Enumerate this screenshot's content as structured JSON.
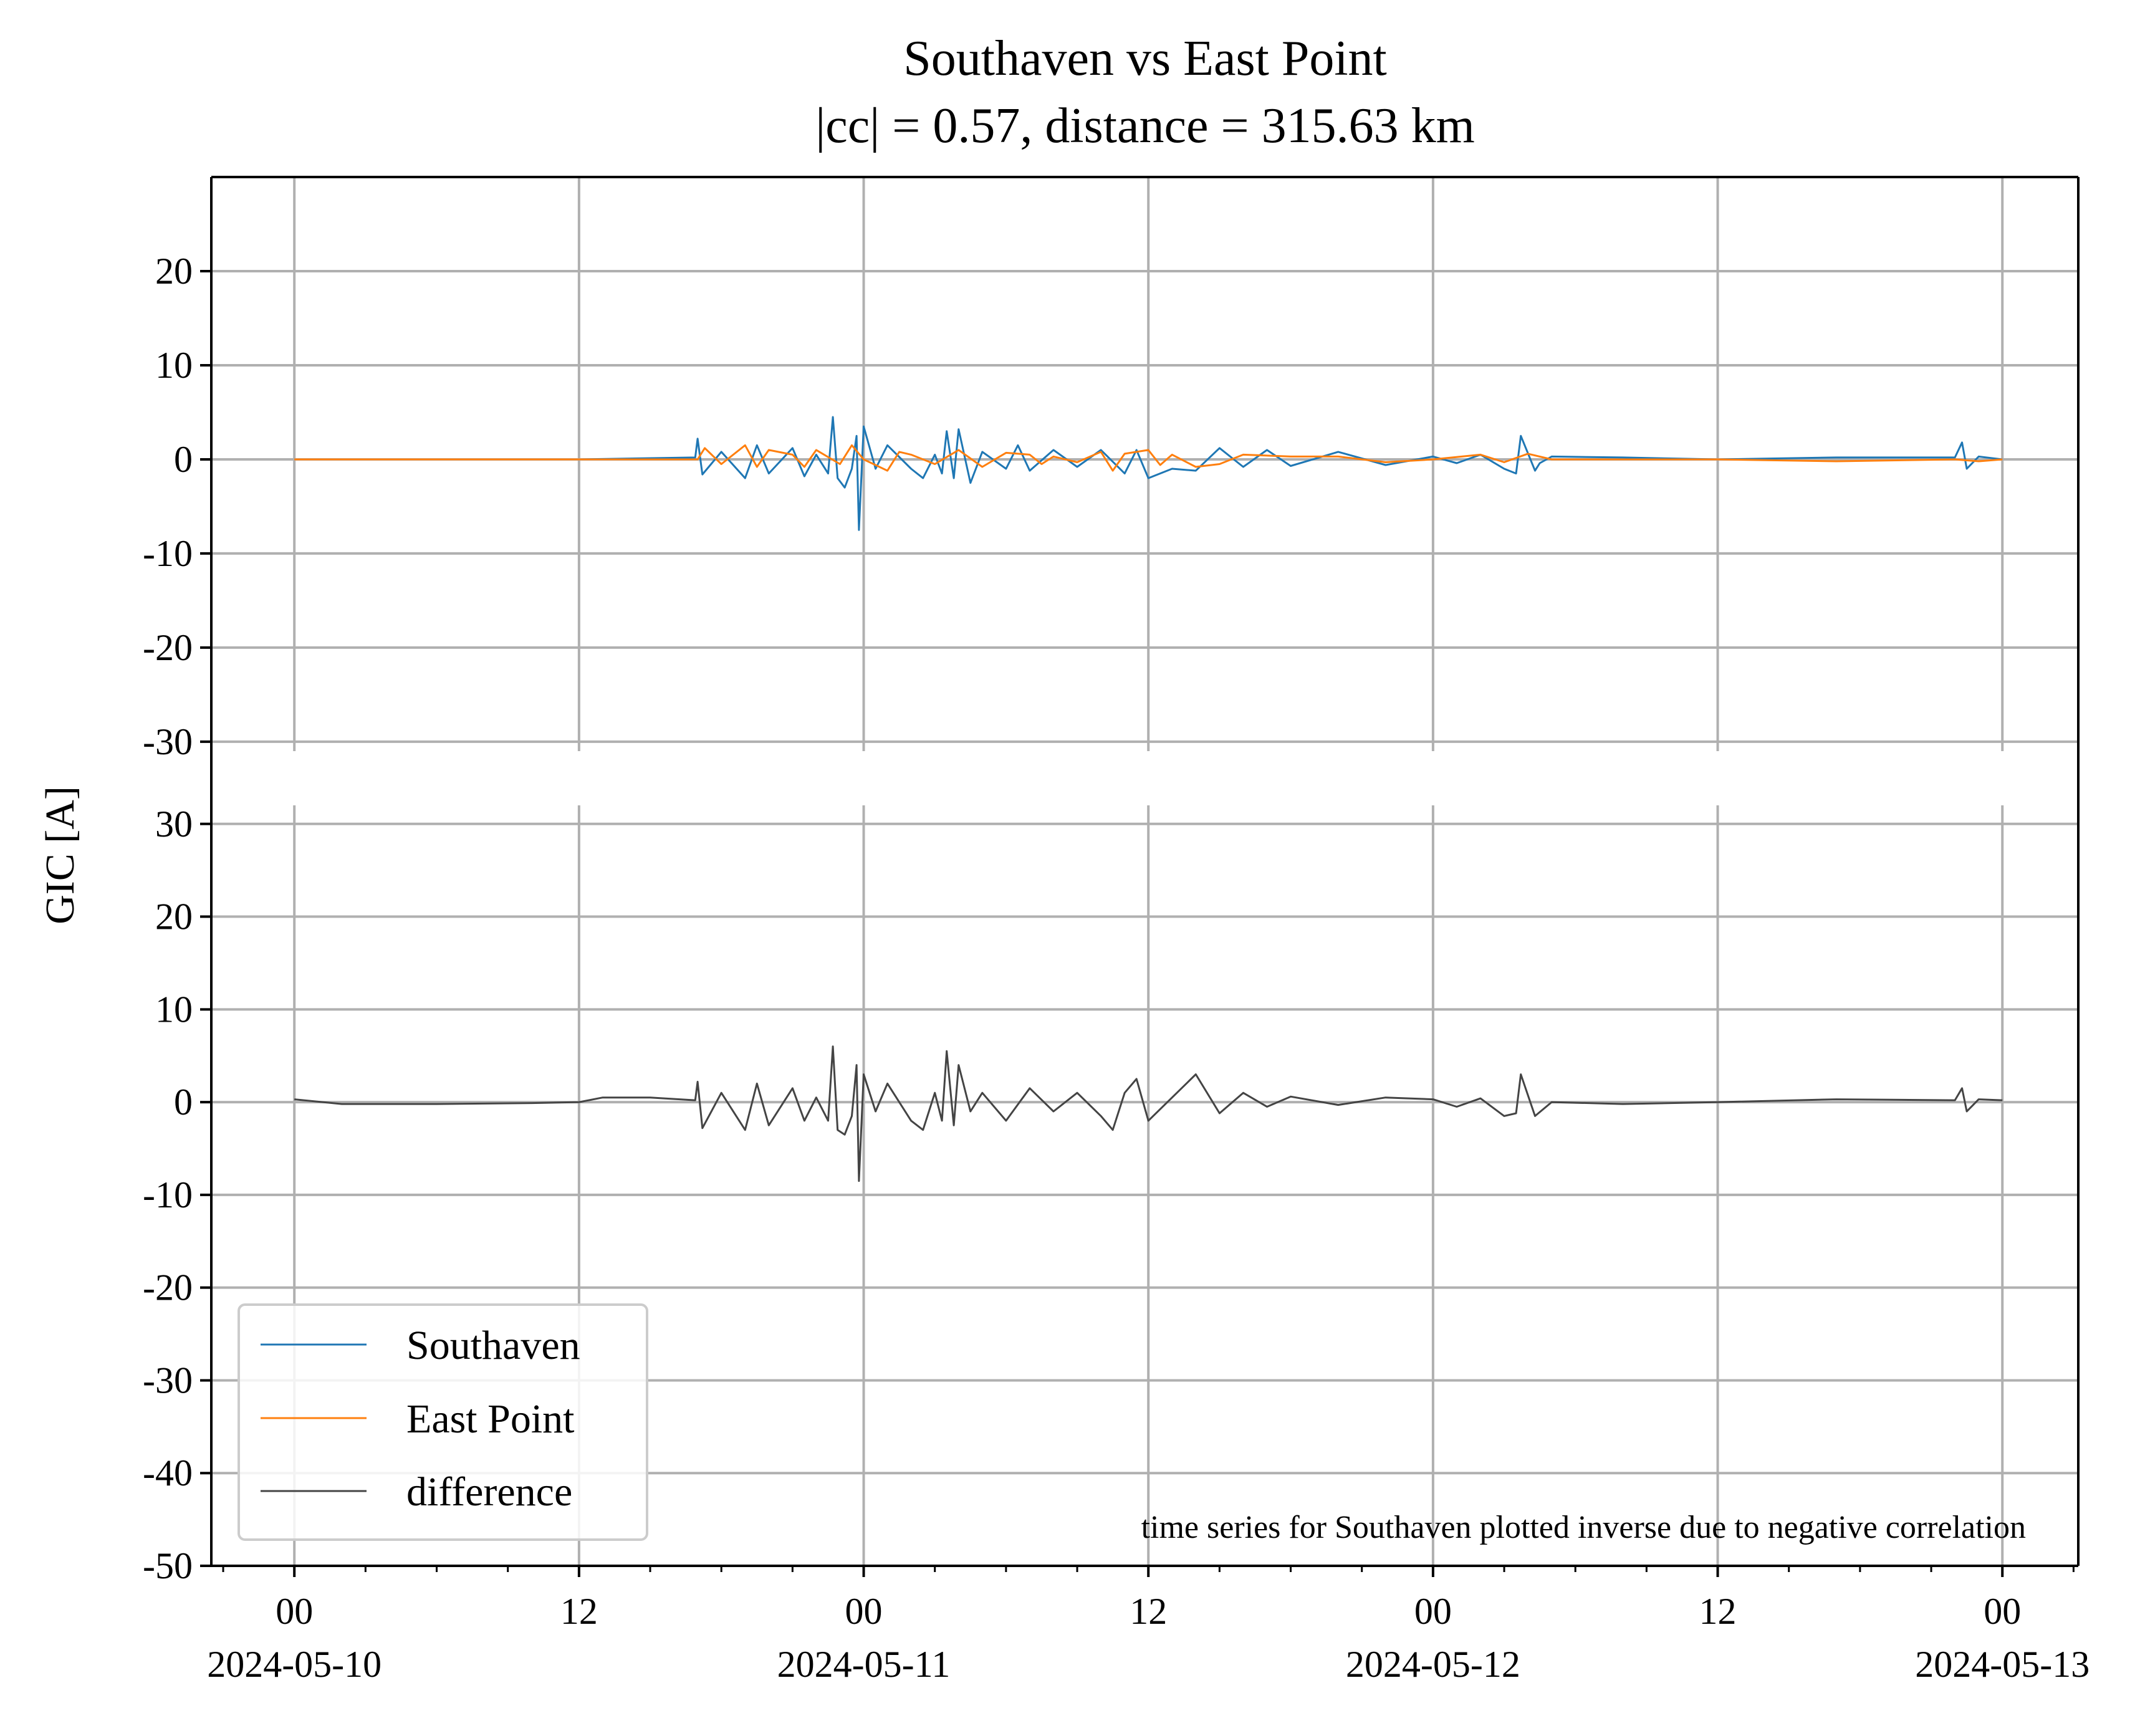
{
  "figure": {
    "title_line1": "Southaven vs East Point",
    "title_line2": "|cc| = 0.57, distance = 315.63 km",
    "ylabel": "GIC [A]",
    "annotation": "time series for Southaven plotted inverse due to negative correlation"
  },
  "legend": {
    "placement": "lower-left",
    "items": [
      {
        "label": "Southaven",
        "color": "#1f77b4"
      },
      {
        "label": "East Point",
        "color": "#ff7f0e"
      },
      {
        "label": "difference",
        "color": "#444444"
      }
    ]
  },
  "x_ticks": [
    {
      "hour": 0,
      "time": "00",
      "date": "2024-05-10"
    },
    {
      "hour": 12,
      "time": "12",
      "date": ""
    },
    {
      "hour": 24,
      "time": "00",
      "date": "2024-05-11"
    },
    {
      "hour": 36,
      "time": "12",
      "date": ""
    },
    {
      "hour": 48,
      "time": "00",
      "date": "2024-05-12"
    },
    {
      "hour": 60,
      "time": "12",
      "date": ""
    },
    {
      "hour": 72,
      "time": "00",
      "date": "2024-05-13"
    }
  ],
  "chart_data": [
    {
      "type": "line",
      "panel": "top",
      "xlabel": "",
      "ylabel": "GIC [A]",
      "x_unit": "hours since 2024-05-10 00:00",
      "xlim": [
        -3.5,
        75.2
      ],
      "ylim": [
        -31,
        30
      ],
      "y_ticks": [
        20,
        10,
        0,
        -10,
        -20,
        -30
      ],
      "grid": true,
      "series": [
        {
          "name": "Southaven",
          "color": "#1f77b4",
          "points": [
            [
              0,
              0
            ],
            [
              12,
              0
            ],
            [
              16.9,
              0.2
            ],
            [
              17,
              2.2
            ],
            [
              17.2,
              -1.6
            ],
            [
              18,
              0.8
            ],
            [
              19,
              -2
            ],
            [
              19.5,
              1.5
            ],
            [
              20,
              -1.5
            ],
            [
              21,
              1.2
            ],
            [
              21.5,
              -1.8
            ],
            [
              22,
              0.5
            ],
            [
              22.5,
              -1.5
            ],
            [
              22.7,
              4.5
            ],
            [
              22.9,
              -2
            ],
            [
              23.2,
              -3
            ],
            [
              23.5,
              -1
            ],
            [
              23.7,
              2.5
            ],
            [
              23.8,
              -7.5
            ],
            [
              24,
              3.5
            ],
            [
              24.5,
              -1
            ],
            [
              25,
              1.5
            ],
            [
              26,
              -1
            ],
            [
              26.5,
              -2
            ],
            [
              27,
              0.5
            ],
            [
              27.3,
              -1.5
            ],
            [
              27.5,
              3
            ],
            [
              27.8,
              -2
            ],
            [
              28,
              3.2
            ],
            [
              28.5,
              -2.5
            ],
            [
              29,
              0.8
            ],
            [
              30,
              -1
            ],
            [
              30.5,
              1.5
            ],
            [
              31,
              -1.2
            ],
            [
              32,
              1
            ],
            [
              33,
              -0.8
            ],
            [
              34,
              1
            ],
            [
              35,
              -1.5
            ],
            [
              35.5,
              1
            ],
            [
              36,
              -2
            ],
            [
              37,
              -1
            ],
            [
              38,
              -1.2
            ],
            [
              39,
              1.2
            ],
            [
              40,
              -0.8
            ],
            [
              41,
              1
            ],
            [
              42,
              -0.7
            ],
            [
              44,
              0.8
            ],
            [
              46,
              -0.6
            ],
            [
              48,
              0.3
            ],
            [
              49,
              -0.4
            ],
            [
              50,
              0.5
            ],
            [
              51,
              -1
            ],
            [
              51.5,
              -1.5
            ],
            [
              51.7,
              2.5
            ],
            [
              52.3,
              -1.2
            ],
            [
              52.5,
              -0.4
            ],
            [
              53,
              0.3
            ],
            [
              56,
              0.2
            ],
            [
              60,
              0
            ],
            [
              65,
              0.2
            ],
            [
              70,
              0.2
            ],
            [
              70.3,
              1.8
            ],
            [
              70.5,
              -1
            ],
            [
              71,
              0.3
            ],
            [
              72,
              0
            ]
          ]
        },
        {
          "name": "East Point",
          "color": "#ff7f0e",
          "points": [
            [
              0,
              0
            ],
            [
              12,
              0
            ],
            [
              17,
              0
            ],
            [
              17.3,
              1.2
            ],
            [
              18,
              -0.5
            ],
            [
              19,
              1.5
            ],
            [
              19.5,
              -0.8
            ],
            [
              20,
              1
            ],
            [
              21,
              0.5
            ],
            [
              21.5,
              -0.8
            ],
            [
              22,
              1
            ],
            [
              23,
              -0.5
            ],
            [
              23.5,
              1.5
            ],
            [
              24,
              0
            ],
            [
              25,
              -1.2
            ],
            [
              25.5,
              0.8
            ],
            [
              26,
              0.5
            ],
            [
              27,
              -0.5
            ],
            [
              28,
              1
            ],
            [
              29,
              -0.8
            ],
            [
              30,
              0.7
            ],
            [
              31,
              0.5
            ],
            [
              31.5,
              -0.5
            ],
            [
              32,
              0.3
            ],
            [
              33,
              -0.3
            ],
            [
              34,
              0.8
            ],
            [
              34.5,
              -1.2
            ],
            [
              35,
              0.6
            ],
            [
              36,
              1
            ],
            [
              36.5,
              -0.6
            ],
            [
              37,
              0.5
            ],
            [
              38,
              -0.8
            ],
            [
              39,
              -0.5
            ],
            [
              40,
              0.5
            ],
            [
              42,
              0.3
            ],
            [
              44,
              0.3
            ],
            [
              46,
              -0.3
            ],
            [
              48,
              0
            ],
            [
              50,
              0.5
            ],
            [
              51,
              -0.3
            ],
            [
              52,
              0.6
            ],
            [
              53,
              0
            ],
            [
              56,
              0
            ],
            [
              60,
              0
            ],
            [
              65,
              -0.2
            ],
            [
              70,
              0
            ],
            [
              71,
              -0.2
            ],
            [
              72,
              0
            ]
          ]
        }
      ]
    },
    {
      "type": "line",
      "panel": "bottom",
      "xlabel": "",
      "ylabel": "GIC [A]",
      "x_unit": "hours since 2024-05-10 00:00",
      "xlim": [
        -3.5,
        75.2
      ],
      "ylim": [
        -50,
        32
      ],
      "y_ticks": [
        30,
        20,
        10,
        0,
        -10,
        -20,
        -30,
        -40,
        -50
      ],
      "grid": true,
      "series": [
        {
          "name": "difference",
          "color": "#444444",
          "points": [
            [
              0,
              0.3
            ],
            [
              2,
              -0.2
            ],
            [
              6,
              -0.2
            ],
            [
              10,
              -0.1
            ],
            [
              12,
              0
            ],
            [
              13,
              0.5
            ],
            [
              15,
              0.5
            ],
            [
              16.9,
              0.2
            ],
            [
              17,
              2.2
            ],
            [
              17.2,
              -2.8
            ],
            [
              18,
              1
            ],
            [
              19,
              -3
            ],
            [
              19.5,
              2
            ],
            [
              20,
              -2.5
            ],
            [
              21,
              1.5
            ],
            [
              21.5,
              -2
            ],
            [
              22,
              0.5
            ],
            [
              22.5,
              -2
            ],
            [
              22.7,
              6
            ],
            [
              22.9,
              -3
            ],
            [
              23.2,
              -3.5
            ],
            [
              23.5,
              -1.5
            ],
            [
              23.7,
              4
            ],
            [
              23.8,
              -8.5
            ],
            [
              24,
              3
            ],
            [
              24.5,
              -1
            ],
            [
              25,
              2
            ],
            [
              26,
              -2
            ],
            [
              26.5,
              -3
            ],
            [
              27,
              1
            ],
            [
              27.3,
              -2
            ],
            [
              27.5,
              5.5
            ],
            [
              27.8,
              -2.5
            ],
            [
              28,
              4
            ],
            [
              28.5,
              -1
            ],
            [
              29,
              1
            ],
            [
              30,
              -2
            ],
            [
              31,
              1.5
            ],
            [
              32,
              -1
            ],
            [
              33,
              1
            ],
            [
              34,
              -1.5
            ],
            [
              34.5,
              -3
            ],
            [
              35,
              1
            ],
            [
              35.5,
              2.5
            ],
            [
              36,
              -2
            ],
            [
              37,
              0.5
            ],
            [
              38,
              3
            ],
            [
              39,
              -1.2
            ],
            [
              40,
              1
            ],
            [
              41,
              -0.5
            ],
            [
              42,
              0.6
            ],
            [
              44,
              -0.3
            ],
            [
              46,
              0.5
            ],
            [
              48,
              0.3
            ],
            [
              49,
              -0.5
            ],
            [
              50,
              0.4
            ],
            [
              51,
              -1.5
            ],
            [
              51.5,
              -1.2
            ],
            [
              51.7,
              3
            ],
            [
              52.3,
              -1.5
            ],
            [
              53,
              0
            ],
            [
              56,
              -0.2
            ],
            [
              60,
              0
            ],
            [
              65,
              0.3
            ],
            [
              70,
              0.2
            ],
            [
              70.3,
              1.5
            ],
            [
              70.5,
              -1
            ],
            [
              71,
              0.3
            ],
            [
              72,
              0.2
            ]
          ]
        }
      ]
    }
  ]
}
